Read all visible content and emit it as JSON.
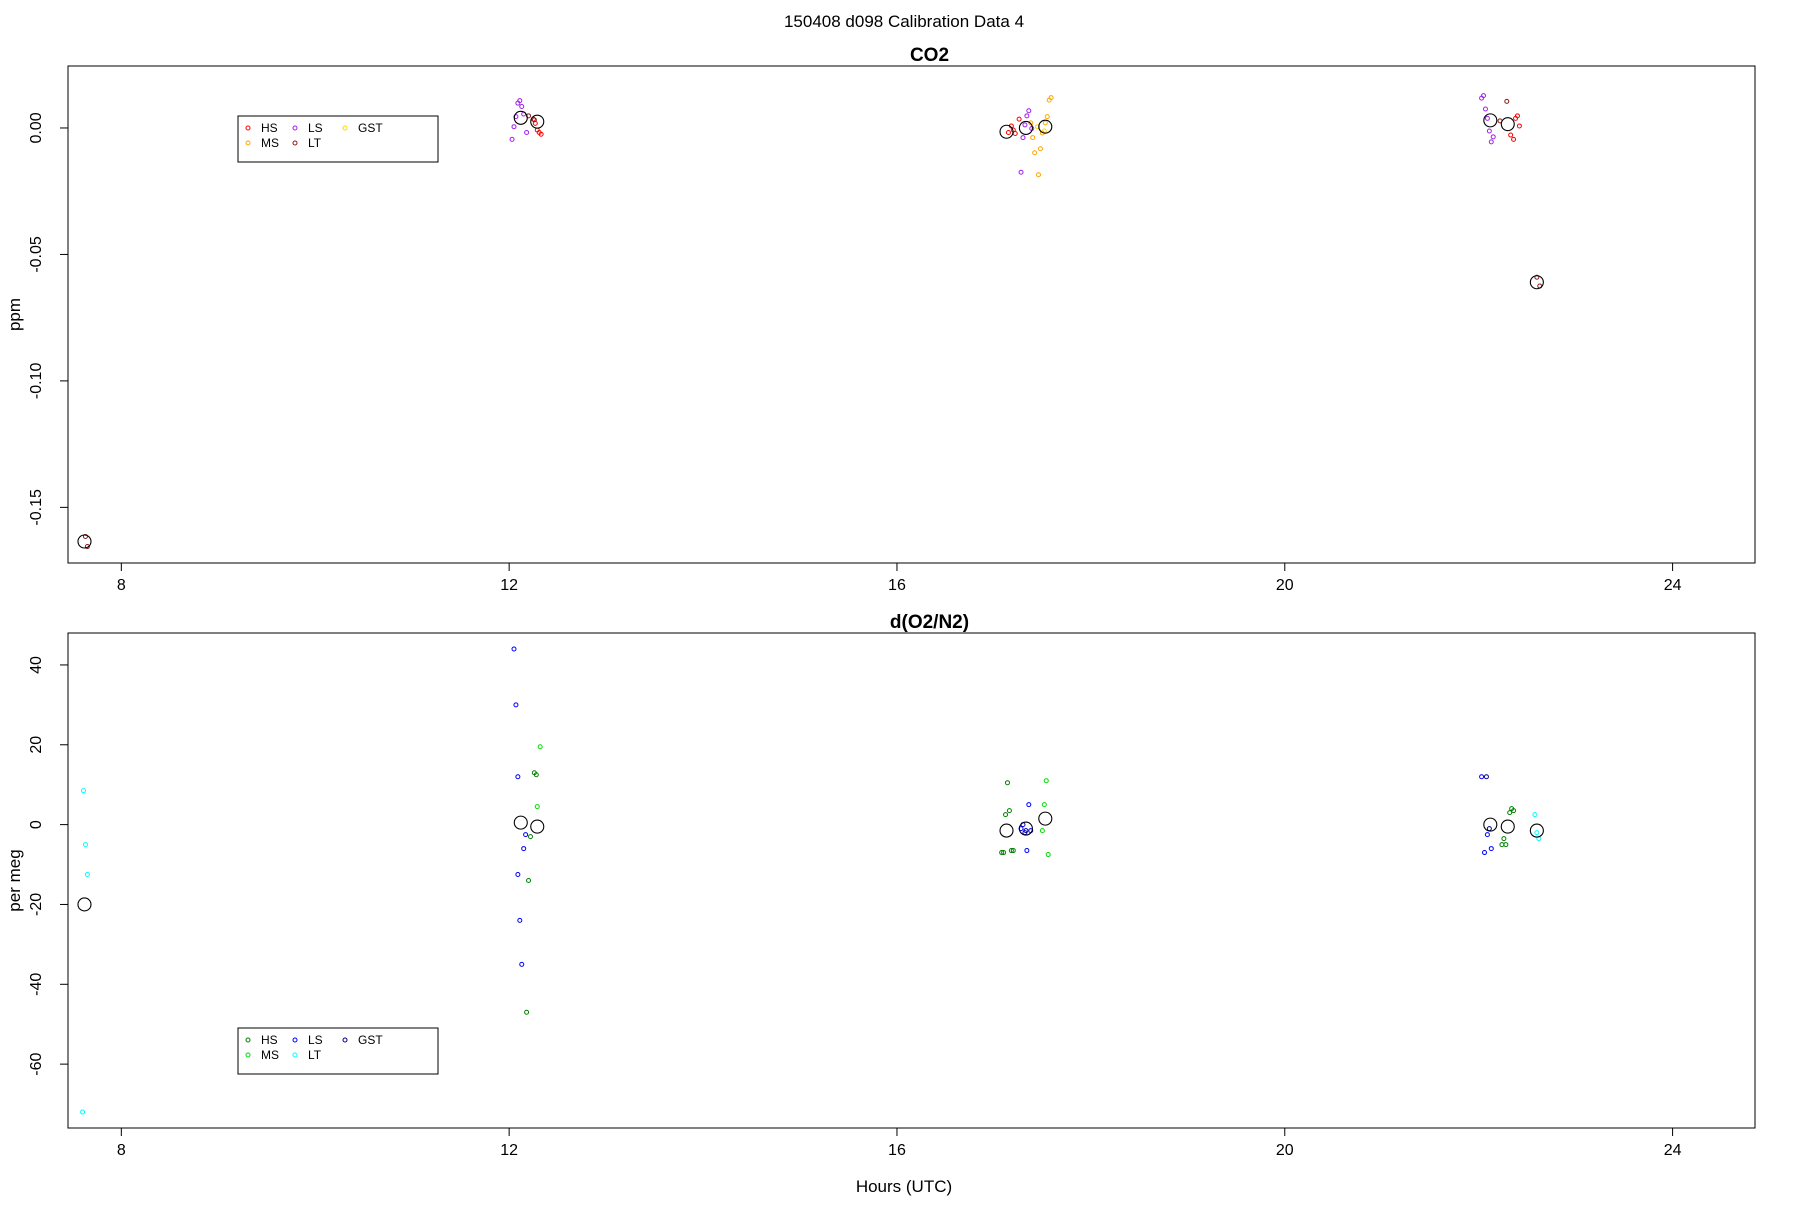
{
  "page_title": "150408   d098   Calibration Data 4",
  "xlabel_bottom": "Hours (UTC)",
  "chart_data": [
    {
      "type": "scatter",
      "title": "CO2",
      "xlabel": "",
      "ylabel": "ppm",
      "xlim": [
        7.45,
        24.85
      ],
      "ylim": [
        -0.172,
        0.0245
      ],
      "xticks": [
        "8",
        "12",
        "16",
        "20",
        "24"
      ],
      "yticks": [
        "0.00",
        "-0.05",
        "-0.10",
        "-0.15"
      ],
      "grid": false,
      "legend": {
        "placement": "top-left",
        "entries": [
          "HS",
          "MS",
          "LS",
          "LT",
          "GST"
        ]
      },
      "series": [
        {
          "name": "HS",
          "color": "#ff0000",
          "points": [
            [
              12.27,
              0.0018
            ],
            [
              12.29,
              -0.0008
            ],
            [
              12.31,
              -0.0018
            ],
            [
              12.33,
              -0.0025
            ],
            [
              12.25,
              0.0035
            ],
            [
              17.15,
              -0.0018
            ],
            [
              17.18,
              0.0008
            ],
            [
              17.2,
              -0.0008
            ],
            [
              17.22,
              -0.0022
            ],
            [
              17.26,
              0.0035
            ],
            [
              22.33,
              -0.0028
            ],
            [
              22.36,
              -0.0045
            ],
            [
              22.38,
              0.0038
            ],
            [
              22.4,
              0.0048
            ],
            [
              22.42,
              0.0008
            ]
          ]
        },
        {
          "name": "MS",
          "color": "#ffa500",
          "points": [
            [
              17.38,
              0.002
            ],
            [
              17.4,
              -0.0038
            ],
            [
              17.42,
              -0.0098
            ],
            [
              17.46,
              -0.0185
            ],
            [
              17.48,
              -0.0082
            ],
            [
              17.5,
              -0.002
            ],
            [
              17.53,
              0.002
            ],
            [
              17.55,
              0.0045
            ],
            [
              17.57,
              0.011
            ],
            [
              17.59,
              0.012
            ]
          ]
        },
        {
          "name": "LS",
          "color": "#a020f0",
          "points": [
            [
              12.03,
              -0.0045
            ],
            [
              12.05,
              0.0005
            ],
            [
              12.07,
              0.0045
            ],
            [
              12.09,
              0.0098
            ],
            [
              12.11,
              0.0108
            ],
            [
              12.13,
              0.0085
            ],
            [
              12.15,
              0.0055
            ],
            [
              12.18,
              -0.0018
            ],
            [
              17.28,
              -0.0175
            ],
            [
              17.3,
              -0.0038
            ],
            [
              17.32,
              0.0012
            ],
            [
              17.34,
              0.0048
            ],
            [
              17.36,
              0.0068
            ],
            [
              17.39,
              -0.0002
            ],
            [
              22.03,
              0.0118
            ],
            [
              22.05,
              0.0128
            ],
            [
              22.07,
              0.0075
            ],
            [
              22.09,
              0.0038
            ],
            [
              22.11,
              -0.0012
            ],
            [
              22.13,
              -0.0055
            ],
            [
              22.15,
              -0.0035
            ]
          ]
        },
        {
          "name": "LT",
          "color": "#8b1a1a",
          "points": [
            [
              7.63,
              -0.1615
            ],
            [
              7.65,
              -0.1655
            ],
            [
              12.2,
              0.0048
            ],
            [
              12.26,
              0.0032
            ],
            [
              22.22,
              0.0028
            ],
            [
              22.29,
              0.0105
            ],
            [
              22.6,
              -0.059
            ],
            [
              22.63,
              -0.0625
            ]
          ]
        },
        {
          "name": "GST",
          "color": "#ffd700",
          "points": [
            [
              17.45,
              0.0005
            ],
            [
              17.52,
              -0.0012
            ]
          ]
        },
        {
          "name": "",
          "color": "#000000",
          "mean": true,
          "points": [
            [
              7.62,
              -0.1635
            ],
            [
              12.12,
              0.004
            ],
            [
              12.29,
              0.0025
            ],
            [
              17.13,
              -0.0015
            ],
            [
              17.33,
              0.0
            ],
            [
              17.53,
              0.0005
            ],
            [
              22.12,
              0.003
            ],
            [
              22.3,
              0.0015
            ],
            [
              22.6,
              -0.061
            ]
          ]
        }
      ]
    },
    {
      "type": "scatter",
      "title": "d(O2/N2)",
      "xlabel": "Hours (UTC)",
      "ylabel": "per meg",
      "xlim": [
        7.45,
        24.85
      ],
      "ylim": [
        -76,
        48
      ],
      "xticks": [
        "8",
        "12",
        "16",
        "20",
        "24"
      ],
      "yticks": [
        "40",
        "20",
        "0",
        "-20",
        "-40",
        "-60"
      ],
      "grid": false,
      "legend": {
        "placement": "bottom-left",
        "entries": [
          "HS",
          "MS",
          "LS",
          "LT",
          "GST"
        ]
      },
      "series": [
        {
          "name": "HS",
          "color": "#008000",
          "points": [
            [
              12.18,
              -47
            ],
            [
              12.2,
              -14
            ],
            [
              12.22,
              -3
            ],
            [
              12.26,
              13
            ],
            [
              12.28,
              12.5
            ],
            [
              17.08,
              -7
            ],
            [
              17.1,
              -7
            ],
            [
              17.12,
              2.5
            ],
            [
              17.14,
              10.5
            ],
            [
              17.16,
              3.5
            ],
            [
              17.18,
              -6.5
            ],
            [
              17.2,
              -6.5
            ],
            [
              22.24,
              -5
            ],
            [
              22.26,
              -3.5
            ],
            [
              22.28,
              -5
            ],
            [
              22.32,
              3
            ],
            [
              22.34,
              4
            ],
            [
              22.36,
              3.5
            ]
          ]
        },
        {
          "name": "MS",
          "color": "#00dd00",
          "points": [
            [
              12.29,
              4.5
            ],
            [
              12.32,
              19.5
            ],
            [
              17.5,
              -1.5
            ],
            [
              17.52,
              5
            ],
            [
              17.54,
              11
            ],
            [
              17.56,
              -7.5
            ]
          ]
        },
        {
          "name": "LS",
          "color": "#0000ff",
          "points": [
            [
              12.05,
              44
            ],
            [
              12.07,
              30
            ],
            [
              12.09,
              12
            ],
            [
              12.09,
              -12.5
            ],
            [
              12.11,
              -24
            ],
            [
              12.13,
              -35
            ],
            [
              12.15,
              -6
            ],
            [
              12.17,
              -2.5
            ],
            [
              17.28,
              -1
            ],
            [
              17.3,
              0
            ],
            [
              17.32,
              -2
            ],
            [
              17.34,
              -6.5
            ],
            [
              17.36,
              5
            ],
            [
              17.38,
              -1.5
            ],
            [
              22.03,
              12
            ],
            [
              22.06,
              -7
            ],
            [
              22.09,
              -2.5
            ],
            [
              22.13,
              -6
            ]
          ]
        },
        {
          "name": "LT",
          "color": "#00ffff",
          "points": [
            [
              7.61,
              8.5
            ],
            [
              7.63,
              -5
            ],
            [
              7.65,
              -12.5
            ],
            [
              7.6,
              -72
            ],
            [
              22.58,
              2.5
            ],
            [
              22.6,
              -2
            ],
            [
              22.62,
              -3.5
            ]
          ]
        },
        {
          "name": "GST",
          "color": "#00008b",
          "points": [
            [
              17.33,
              -1.5
            ],
            [
              22.08,
              12
            ],
            [
              22.11,
              -1
            ]
          ]
        },
        {
          "name": "",
          "color": "#000000",
          "mean": true,
          "points": [
            [
              7.62,
              -20
            ],
            [
              12.12,
              0.5
            ],
            [
              12.29,
              -0.5
            ],
            [
              17.13,
              -1.5
            ],
            [
              17.33,
              -1
            ],
            [
              17.53,
              1.5
            ],
            [
              22.12,
              0
            ],
            [
              22.3,
              -0.5
            ],
            [
              22.6,
              -1.5
            ]
          ]
        }
      ]
    }
  ]
}
